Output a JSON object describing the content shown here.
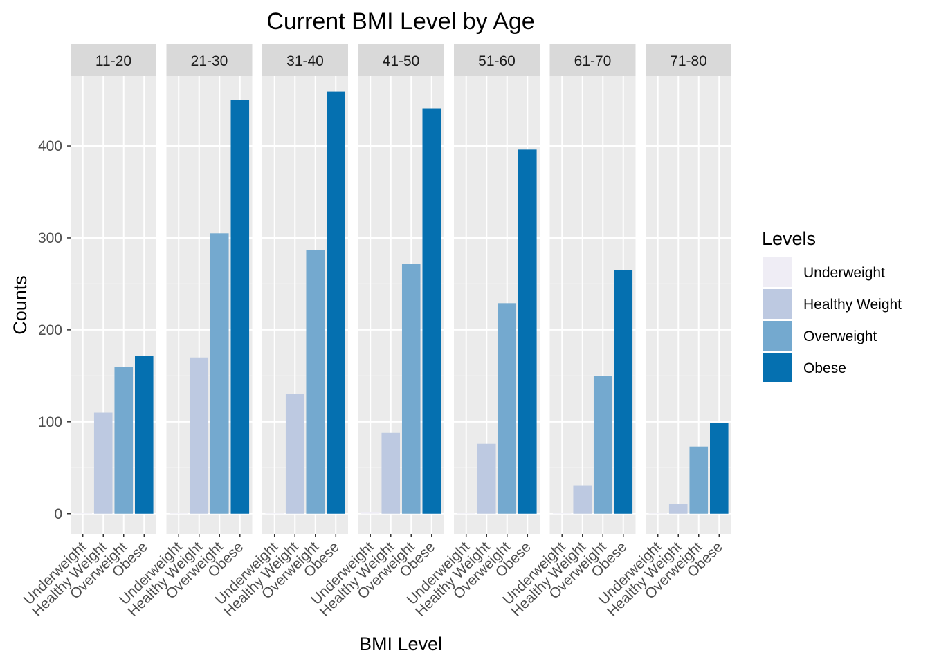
{
  "chart_data": {
    "type": "bar",
    "title": "Current BMI Level by Age",
    "xlabel": "BMI Level",
    "ylabel": "Counts",
    "ylim": [
      -22,
      476
    ],
    "y_ticks": [
      0,
      100,
      200,
      300,
      400
    ],
    "grid": true,
    "legend": {
      "title": "Levels",
      "position": "right"
    },
    "categories": [
      "Underweight",
      "Healthy Weight",
      "Overweight",
      "Obese"
    ],
    "colors": [
      "#efedf5",
      "#bdc9e1",
      "#74a9cf",
      "#0570b0"
    ],
    "facets": [
      {
        "label": "11-20",
        "values": [
          1,
          110,
          160,
          172
        ]
      },
      {
        "label": "21-30",
        "values": [
          1,
          170,
          305,
          450
        ]
      },
      {
        "label": "31-40",
        "values": [
          1,
          130,
          287,
          459
        ]
      },
      {
        "label": "41-50",
        "values": [
          2,
          88,
          272,
          441
        ]
      },
      {
        "label": "51-60",
        "values": [
          1,
          76,
          229,
          396
        ]
      },
      {
        "label": "61-70",
        "values": [
          1,
          31,
          150,
          265
        ]
      },
      {
        "label": "71-80",
        "values": [
          1,
          11,
          73,
          99
        ]
      }
    ]
  }
}
